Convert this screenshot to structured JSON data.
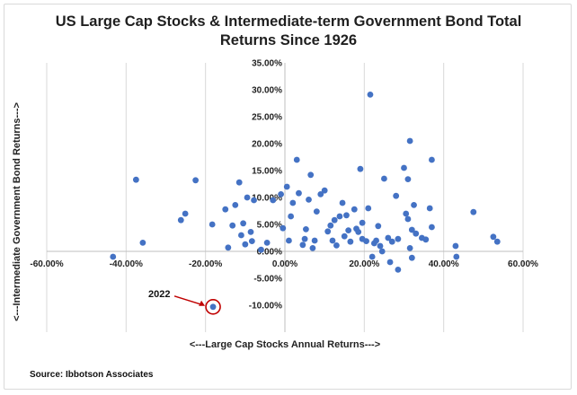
{
  "chart_data": {
    "type": "scatter",
    "title": "US Large Cap Stocks & Intermediate-term Government Bond Total Returns Since 1926",
    "title_lines": [
      "US Large Cap Stocks & Intermediate-term Government Bond Total",
      "Returns Since 1926"
    ],
    "xlabel": "<---Large Cap Stocks Annual Returns--->",
    "ylabel": "<---Intermediate Government Bond Returns--->",
    "xlim": [
      -60,
      60
    ],
    "ylim": [
      -15,
      35
    ],
    "x_ticks": [
      -60,
      -40,
      -20,
      0,
      20,
      40,
      60
    ],
    "y_ticks": [
      -10,
      -5,
      0,
      5,
      10,
      15,
      20,
      25,
      30,
      35
    ],
    "x_tick_labels": [
      "-60.00%",
      "-40.00%",
      "-20.00%",
      "0.00%",
      "20.00%",
      "40.00%",
      "60.00%"
    ],
    "y_tick_labels": [
      "-10.00%",
      "-5.00%",
      "0.00%",
      "5.00%",
      "10.00%",
      "15.00%",
      "20.00%",
      "25.00%",
      "30.00%",
      "35.00%"
    ],
    "grid": "vertical",
    "marker_color": "#4472c4",
    "series": [
      {
        "points": [
          [
            -43.3,
            -1.0
          ],
          [
            -37.5,
            13.3
          ],
          [
            -35.8,
            1.6
          ],
          [
            -26.2,
            5.8
          ],
          [
            -25.1,
            7.0
          ],
          [
            -22.5,
            13.2
          ],
          [
            -18.3,
            5.0
          ],
          [
            -15.0,
            7.8
          ],
          [
            -14.3,
            0.7
          ],
          [
            -13.2,
            4.8
          ],
          [
            -12.5,
            8.6
          ],
          [
            -11.5,
            12.8
          ],
          [
            -11.0,
            3.0
          ],
          [
            -10.5,
            5.2
          ],
          [
            -10.0,
            1.3
          ],
          [
            -9.5,
            10.0
          ],
          [
            -8.6,
            3.6
          ],
          [
            -8.3,
            1.9
          ],
          [
            -7.8,
            9.5
          ],
          [
            -6.0,
            0.3
          ],
          [
            -4.5,
            1.6
          ],
          [
            -3.0,
            9.5
          ],
          [
            -1.0,
            10.6
          ],
          [
            -0.5,
            4.3
          ],
          [
            0.5,
            12.0
          ],
          [
            1.0,
            2.0
          ],
          [
            1.5,
            6.5
          ],
          [
            2.0,
            9.0
          ],
          [
            3.0,
            17.0
          ],
          [
            3.5,
            10.8
          ],
          [
            4.5,
            1.2
          ],
          [
            5.0,
            2.3
          ],
          [
            5.3,
            4.1
          ],
          [
            6.0,
            9.6
          ],
          [
            6.5,
            14.2
          ],
          [
            7.0,
            0.6
          ],
          [
            7.5,
            2.0
          ],
          [
            8.0,
            7.4
          ],
          [
            9.0,
            10.6
          ],
          [
            10.0,
            11.3
          ],
          [
            10.8,
            3.7
          ],
          [
            11.5,
            4.8
          ],
          [
            12.0,
            2.0
          ],
          [
            12.5,
            5.8
          ],
          [
            13.0,
            1.1
          ],
          [
            13.8,
            6.5
          ],
          [
            14.5,
            9.0
          ],
          [
            15.0,
            2.8
          ],
          [
            15.5,
            6.7
          ],
          [
            16.0,
            3.9
          ],
          [
            16.5,
            1.8
          ],
          [
            17.5,
            7.8
          ],
          [
            18.0,
            4.2
          ],
          [
            18.5,
            3.6
          ],
          [
            19.0,
            15.3
          ],
          [
            19.5,
            5.3
          ],
          [
            19.5,
            2.3
          ],
          [
            20.5,
            1.9
          ],
          [
            21.0,
            8.0
          ],
          [
            21.5,
            29.1
          ],
          [
            22.0,
            -1.0
          ],
          [
            22.5,
            1.5
          ],
          [
            23.0,
            2.0
          ],
          [
            23.5,
            4.7
          ],
          [
            24.0,
            1.0
          ],
          [
            24.5,
            0.0
          ],
          [
            25.0,
            13.5
          ],
          [
            26.0,
            2.5
          ],
          [
            26.5,
            -2.0
          ],
          [
            27.0,
            1.8
          ],
          [
            28.0,
            10.3
          ],
          [
            28.5,
            2.3
          ],
          [
            28.5,
            -3.4
          ],
          [
            30.0,
            15.5
          ],
          [
            30.5,
            7.0
          ],
          [
            31.0,
            13.4
          ],
          [
            31.0,
            6.0
          ],
          [
            31.5,
            20.5
          ],
          [
            31.5,
            0.6
          ],
          [
            32.0,
            -1.2
          ],
          [
            32.0,
            4.0
          ],
          [
            32.5,
            8.6
          ],
          [
            33.0,
            3.3
          ],
          [
            34.5,
            2.5
          ],
          [
            35.5,
            2.2
          ],
          [
            36.5,
            8.0
          ],
          [
            37.0,
            17.0
          ],
          [
            37.0,
            4.5
          ],
          [
            43.0,
            1.0
          ],
          [
            43.2,
            -1.0
          ],
          [
            47.5,
            7.3
          ],
          [
            52.5,
            2.7
          ],
          [
            53.5,
            1.8
          ],
          [
            -18.1,
            -10.3
          ]
        ]
      }
    ],
    "annotations": [
      {
        "label": "2022",
        "point": [
          -18.1,
          -10.3
        ]
      }
    ]
  },
  "source": "Source: Ibbotson Associates"
}
